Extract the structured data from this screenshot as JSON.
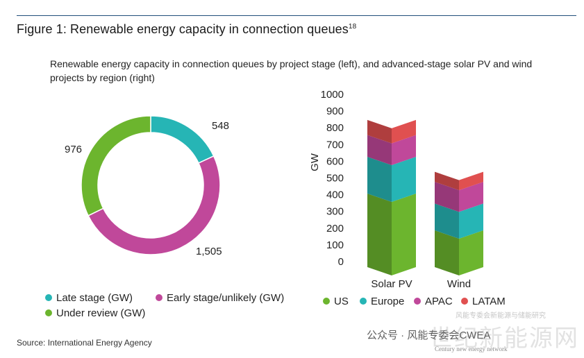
{
  "figure": {
    "title": "Figure 1: Renewable energy capacity in connection queues",
    "title_sup": "18",
    "subtitle": "Renewable energy capacity in connection queues by project stage (left), and advanced-stage solar PV and wind projects by region (right)",
    "source": "Source: International Energy Agency"
  },
  "watermark": {
    "text": "公众号 · 风能专委会CWEA",
    "big_text": "世纪新能源网",
    "small_text": "风能专委会新能源与储能研究",
    "sub_text": "Century new energy network"
  },
  "chart_data": [
    {
      "type": "pie",
      "subtype": "donut",
      "unit": "GW",
      "slices": [
        {
          "label": "Late stage (GW)",
          "value": 548,
          "value_label": "548",
          "color": "#26b5b5"
        },
        {
          "label": "Early stage/unlikely (GW)",
          "value": 1505,
          "value_label": "1,505",
          "color": "#c0489a"
        },
        {
          "label": "Under review (GW)",
          "value": 976,
          "value_label": "976",
          "color": "#6cb52e"
        }
      ],
      "legend_position": "bottom"
    },
    {
      "type": "bar",
      "subtype": "stacked-3d",
      "categories": [
        "Solar PV",
        "Wind"
      ],
      "ylabel": "GW",
      "ylim": [
        0,
        1000
      ],
      "yticks": [
        0,
        100,
        200,
        300,
        400,
        500,
        600,
        700,
        800,
        900,
        1000
      ],
      "grid": false,
      "series": [
        {
          "name": "US",
          "values": [
            440,
            220
          ],
          "color": "#6cb52e"
        },
        {
          "name": "Europe",
          "values": [
            220,
            160
          ],
          "color": "#26b5b5"
        },
        {
          "name": "APAC",
          "values": [
            130,
            130
          ],
          "color": "#c0489a"
        },
        {
          "name": "LATAM",
          "values": [
            90,
            60
          ],
          "color": "#e05050"
        }
      ],
      "legend_position": "bottom"
    }
  ]
}
